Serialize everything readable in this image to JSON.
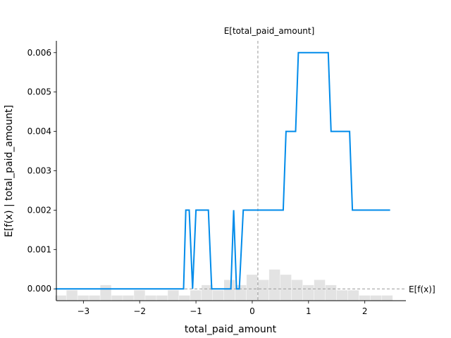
{
  "chart_data": {
    "type": "line",
    "xlabel": "total_paid_amount",
    "ylabel": "E[f(x) | total_paid_amount]",
    "xlim": [
      -3.48,
      2.73
    ],
    "ylim": [
      -0.0003,
      0.0063
    ],
    "xticks": [
      -3,
      -2,
      -1,
      0,
      1,
      2
    ],
    "xtick_labels": [
      "−3",
      "−2",
      "−1",
      "0",
      "1",
      "2"
    ],
    "yticks": [
      0.0,
      0.001,
      0.002,
      0.003,
      0.004,
      0.005,
      0.006
    ],
    "ytick_labels": [
      "0.000",
      "0.001",
      "0.002",
      "0.003",
      "0.004",
      "0.005",
      "0.006"
    ],
    "expected_value_x": 0.1,
    "expected_value_x_label": "E[total_paid_amount]",
    "expected_value_y": 0.0,
    "expected_value_y_label": "E[f(x)]",
    "line_color": "#008bea",
    "series": [
      {
        "x": [
          -3.5,
          -1.22,
          -1.18,
          -1.12,
          -1.06,
          -1.0,
          -0.78,
          -0.72,
          -0.38,
          -0.33,
          -0.28,
          -0.23,
          -0.16,
          0.55,
          0.6,
          0.77,
          0.82,
          1.35,
          1.4,
          1.73,
          1.78,
          2.45
        ],
        "y": [
          0.0,
          0.0,
          0.002,
          0.002,
          0.0,
          0.002,
          0.002,
          0.0,
          0.0,
          0.002,
          0.0,
          0.0,
          0.002,
          0.002,
          0.004,
          0.004,
          0.006,
          0.006,
          0.004,
          0.004,
          0.002,
          0.002
        ]
      }
    ],
    "histogram": {
      "color": "#cccccc",
      "bin_edges": [
        -3.5,
        -3.3,
        -3.1,
        -2.9,
        -2.7,
        -2.5,
        -2.3,
        -2.1,
        -1.9,
        -1.7,
        -1.5,
        -1.3,
        -1.1,
        -0.9,
        -0.7,
        -0.5,
        -0.3,
        -0.1,
        0.1,
        0.3,
        0.5,
        0.7,
        0.9,
        1.1,
        1.3,
        1.5,
        1.7,
        1.9,
        2.1,
        2.3,
        2.5
      ],
      "counts": [
        1,
        2,
        1,
        1,
        3,
        1,
        1,
        2,
        1,
        1,
        2,
        1,
        2,
        3,
        2,
        4,
        3,
        5,
        4,
        6,
        5,
        4,
        3,
        4,
        3,
        2,
        2,
        1,
        1,
        1
      ],
      "fraction_of_plot_height_at_max": 0.12
    }
  }
}
